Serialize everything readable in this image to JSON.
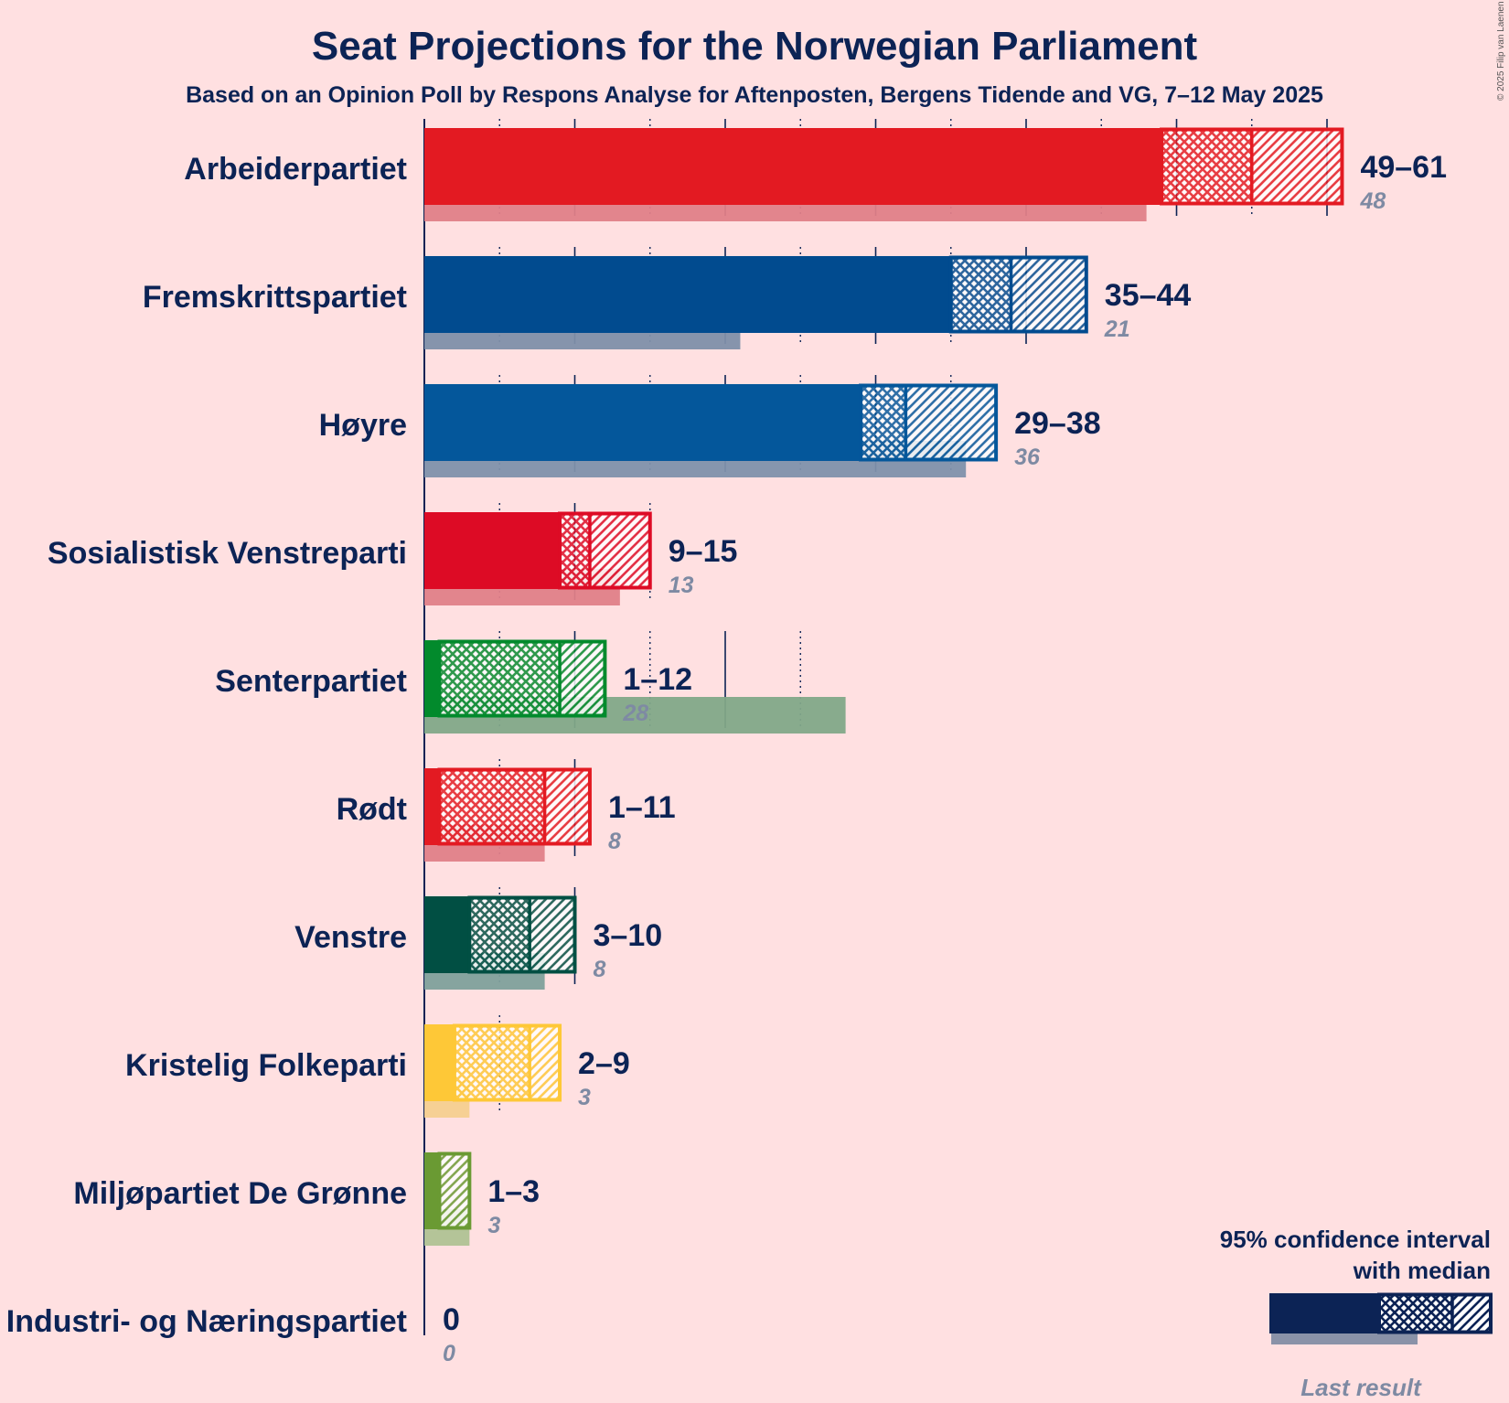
{
  "copyright": "© 2025 Filip van Laenen",
  "chart_data": {
    "type": "bar",
    "orientation": "horizontal",
    "title": "Seat Projections for the Norwegian Parliament",
    "subtitle": "Based on an Opinion Poll by Respons Analyse for Aftenposten, Bergens Tidende and VG, 7–12 May 2025",
    "x_unit": "seats",
    "xlim": [
      0,
      62
    ],
    "grid_solid_every": 10,
    "grid_dotted_every": 5,
    "series": [
      {
        "party": "Arbeiderpartiet",
        "low": 49,
        "ci_low": 49,
        "median": 55,
        "high": 61,
        "label": "49–61",
        "last": 48,
        "last_label": "48",
        "color": "#e31a22",
        "last_color": "#e08088"
      },
      {
        "party": "Fremskrittspartiet",
        "low": 35,
        "ci_low": 35,
        "median": 39,
        "high": 44,
        "label": "35–44",
        "last": 21,
        "last_label": "21",
        "color": "#014b8f",
        "last_color": "#7f8fa9"
      },
      {
        "party": "Høyre",
        "low": 29,
        "ci_low": 29,
        "median": 32,
        "high": 38,
        "label": "29–38",
        "last": 36,
        "last_label": "36",
        "color": "#04579b",
        "last_color": "#8091ab"
      },
      {
        "party": "Sosialistisk Venstreparti",
        "low": 9,
        "ci_low": 9,
        "median": 11,
        "high": 15,
        "label": "9–15",
        "last": 13,
        "last_label": "13",
        "color": "#dd0b25",
        "last_color": "#e08088"
      },
      {
        "party": "Senterpartiet",
        "low": 1,
        "ci_low": 1,
        "median": 9,
        "high": 12,
        "label": "1–12",
        "last": 28,
        "last_label": "28",
        "color": "#028a2c",
        "last_color": "#82a888"
      },
      {
        "party": "Rødt",
        "low": 1,
        "ci_low": 1,
        "median": 8,
        "high": 11,
        "label": "1–11",
        "last": 8,
        "last_label": "8",
        "color": "#e31a22",
        "last_color": "#e08088"
      },
      {
        "party": "Venstre",
        "low": 3,
        "ci_low": 3,
        "median": 7,
        "high": 10,
        "label": "3–10",
        "last": 8,
        "last_label": "8",
        "color": "#014f43",
        "last_color": "#80a09b"
      },
      {
        "party": "Kristelig Folkeparti",
        "low": 2,
        "ci_low": 2,
        "median": 7,
        "high": 9,
        "label": "2–9",
        "last": 3,
        "last_label": "3",
        "color": "#fec837",
        "last_color": "#f5cf8f"
      },
      {
        "party": "Miljøpartiet De Grønne",
        "low": 1,
        "ci_low": 1,
        "median": 1,
        "high": 3,
        "label": "1–3",
        "last": 3,
        "last_label": "3",
        "color": "#6a9a33",
        "last_color": "#b0c294"
      },
      {
        "party": "Industri- og Næringspartiet",
        "low": 0,
        "ci_low": 0,
        "median": 0,
        "high": 0,
        "label": "0",
        "last": 0,
        "last_label": "0",
        "color": "#0c2355",
        "last_color": "#8091ab"
      }
    ],
    "legend": {
      "line1": "95% confidence interval",
      "line2": "with median",
      "last_result": "Last result",
      "color": "#0c2355",
      "last_color": "#8a92a8",
      "position": "bottom-right"
    }
  }
}
